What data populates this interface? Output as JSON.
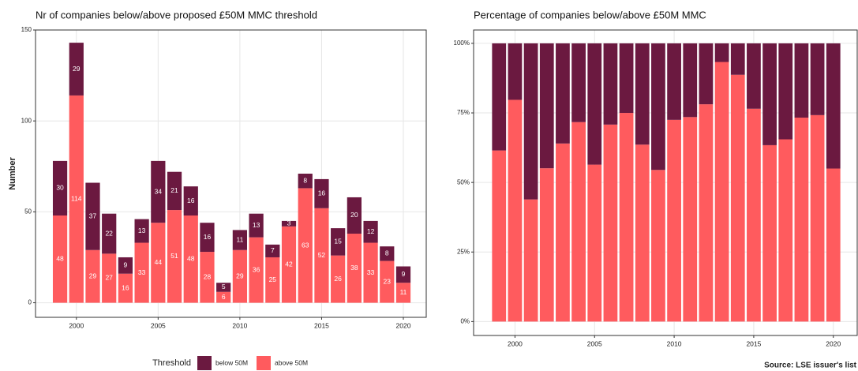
{
  "chart_data": [
    {
      "type": "stacked_bar",
      "title": "Nr of companies below/above proposed £50M MMC threshold",
      "y_label": "Number",
      "x": [
        1999,
        2000,
        2001,
        2002,
        2003,
        2004,
        2005,
        2006,
        2007,
        2008,
        2009,
        2010,
        2011,
        2012,
        2013,
        2014,
        2015,
        2016,
        2017,
        2018,
        2019,
        2020
      ],
      "series": [
        {
          "name": "below 50M",
          "color": "#6b1940",
          "values": [
            30,
            29,
            37,
            22,
            9,
            13,
            34,
            21,
            16,
            16,
            5,
            11,
            13,
            7,
            3,
            8,
            16,
            15,
            20,
            12,
            8,
            9
          ]
        },
        {
          "name": "above 50M",
          "color": "#ff5b5e",
          "values": [
            48,
            114,
            29,
            27,
            16,
            33,
            44,
            51,
            48,
            28,
            6,
            29,
            36,
            25,
            42,
            63,
            52,
            26,
            38,
            33,
            23,
            11
          ]
        }
      ],
      "xlim": [
        1997.5,
        2021.4
      ],
      "xticks": [
        2000,
        2005,
        2010,
        2015,
        2020
      ],
      "ylim": [
        -8,
        150
      ],
      "yticks": [
        0,
        50,
        100,
        150
      ],
      "grid": true,
      "data_labels": true,
      "legend_title": "Threshold",
      "legend": "bottom"
    },
    {
      "type": "stacked_bar",
      "title": "Percentage of companies below/above £50M MMC",
      "x": [
        1999,
        2000,
        2001,
        2002,
        2003,
        2004,
        2005,
        2006,
        2007,
        2008,
        2009,
        2010,
        2011,
        2012,
        2013,
        2014,
        2015,
        2016,
        2017,
        2018,
        2019,
        2020
      ],
      "series": [
        {
          "name": "below 50M",
          "color": "#6b1940",
          "values": [
            38.5,
            20.3,
            56.1,
            44.9,
            36,
            28.3,
            43.6,
            29.2,
            25,
            36.4,
            45.5,
            27.5,
            26.5,
            21.9,
            6.7,
            11.3,
            23.5,
            36.6,
            34.5,
            26.7,
            25.8,
            45
          ]
        },
        {
          "name": "above 50M",
          "color": "#ff5b5e",
          "values": [
            61.5,
            79.7,
            43.9,
            55.1,
            64,
            71.7,
            56.4,
            70.8,
            75,
            63.6,
            54.5,
            72.5,
            73.5,
            78.1,
            93.3,
            88.7,
            76.5,
            63.4,
            65.5,
            73.3,
            74.2,
            55
          ]
        }
      ],
      "xlim": [
        1997.4,
        2021.5
      ],
      "xticks": [
        2000,
        2005,
        2010,
        2015,
        2020
      ],
      "ylim": [
        -5,
        104.8
      ],
      "yticks": [
        {
          "value": 0,
          "label": "0%"
        },
        {
          "value": 25,
          "label": "25%"
        },
        {
          "value": 50,
          "label": "50%"
        },
        {
          "value": 75,
          "label": "75%"
        },
        {
          "value": 100,
          "label": "100%"
        }
      ],
      "grid": true,
      "data_labels": false,
      "source": "Source: LSE issuer's list"
    }
  ]
}
